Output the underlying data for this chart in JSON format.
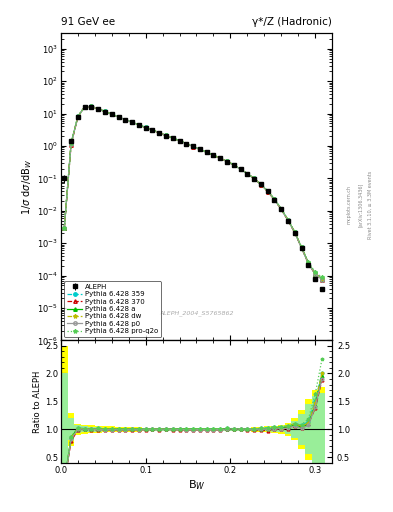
{
  "title_left": "91 GeV ee",
  "title_right": "γ*/Z (Hadronic)",
  "ylabel_main": "1/σ dσ/dB_W",
  "ylabel_ratio": "Ratio to ALEPH",
  "xlabel": "B_W",
  "watermark": "ALEPH_2004_S5765862",
  "rivet_label": "Rivet 3.1.10, ≥ 3.3M events",
  "arxiv_label": "[arXiv:1306.3436]",
  "mcplots_label": "mcplots.cern.ch",
  "bw_centers": [
    0.004,
    0.012,
    0.02,
    0.028,
    0.036,
    0.044,
    0.052,
    0.06,
    0.068,
    0.076,
    0.084,
    0.092,
    0.1,
    0.108,
    0.116,
    0.124,
    0.132,
    0.14,
    0.148,
    0.156,
    0.164,
    0.172,
    0.18,
    0.188,
    0.196,
    0.204,
    0.212,
    0.22,
    0.228,
    0.236,
    0.244,
    0.252,
    0.26,
    0.268,
    0.276,
    0.284,
    0.292,
    0.3,
    0.308
  ],
  "aleph_y": [
    0.1,
    1.4,
    8.0,
    16.0,
    16.5,
    14.0,
    11.5,
    9.5,
    7.8,
    6.5,
    5.4,
    4.5,
    3.7,
    3.1,
    2.55,
    2.1,
    1.75,
    1.45,
    1.18,
    0.97,
    0.79,
    0.64,
    0.52,
    0.42,
    0.33,
    0.26,
    0.19,
    0.14,
    0.099,
    0.065,
    0.04,
    0.022,
    0.011,
    0.005,
    0.002,
    0.0007,
    0.00022,
    8e-05,
    4e-05
  ],
  "aleph_yerr": [
    0.03,
    0.2,
    0.3,
    0.4,
    0.4,
    0.3,
    0.25,
    0.2,
    0.16,
    0.13,
    0.11,
    0.09,
    0.07,
    0.06,
    0.05,
    0.04,
    0.035,
    0.029,
    0.024,
    0.019,
    0.016,
    0.013,
    0.01,
    0.008,
    0.007,
    0.005,
    0.004,
    0.003,
    0.002,
    0.0015,
    0.001,
    0.0006,
    0.0003,
    0.00015,
    6e-05,
    2e-05,
    7e-06,
    3e-06,
    1.5e-06
  ],
  "py359_y": [
    0.003,
    1.2,
    8.2,
    16.2,
    16.6,
    14.2,
    11.6,
    9.6,
    7.85,
    6.55,
    5.45,
    4.52,
    3.72,
    3.12,
    2.57,
    2.12,
    1.76,
    1.46,
    1.19,
    0.975,
    0.793,
    0.643,
    0.522,
    0.421,
    0.335,
    0.263,
    0.192,
    0.141,
    0.1,
    0.066,
    0.041,
    0.023,
    0.0115,
    0.0053,
    0.0022,
    0.00075,
    0.00025,
    0.00012,
    8e-05
  ],
  "py370_y": [
    0.003,
    1.1,
    7.9,
    16.0,
    16.4,
    13.9,
    11.4,
    9.4,
    7.72,
    6.44,
    5.36,
    4.46,
    3.68,
    3.09,
    2.54,
    2.1,
    1.74,
    1.44,
    1.17,
    0.962,
    0.784,
    0.636,
    0.517,
    0.416,
    0.331,
    0.26,
    0.19,
    0.139,
    0.098,
    0.064,
    0.039,
    0.022,
    0.011,
    0.005,
    0.0021,
    0.00072,
    0.00024,
    0.00011,
    7.5e-05
  ],
  "pya_y": [
    0.003,
    1.2,
    8.1,
    16.1,
    16.5,
    14.1,
    11.55,
    9.55,
    7.83,
    6.53,
    5.43,
    4.5,
    3.7,
    3.1,
    2.56,
    2.11,
    1.755,
    1.455,
    1.185,
    0.972,
    0.791,
    0.641,
    0.521,
    0.42,
    0.334,
    0.262,
    0.191,
    0.14,
    0.099,
    0.065,
    0.04,
    0.0225,
    0.0112,
    0.0052,
    0.00215,
    0.00073,
    0.00024,
    0.000115,
    7.8e-05
  ],
  "pydw_y": [
    0.003,
    1.2,
    8.15,
    16.15,
    16.55,
    14.15,
    11.58,
    9.57,
    7.84,
    6.54,
    5.44,
    4.51,
    3.71,
    3.11,
    2.565,
    2.115,
    1.758,
    1.458,
    1.188,
    0.973,
    0.792,
    0.642,
    0.522,
    0.421,
    0.335,
    0.263,
    0.192,
    0.141,
    0.1,
    0.066,
    0.0405,
    0.0228,
    0.0113,
    0.0053,
    0.0022,
    0.00074,
    0.000245,
    0.000118,
    8e-05
  ],
  "pyp0_y": [
    0.003,
    1.15,
    8.0,
    16.05,
    16.45,
    13.95,
    11.45,
    9.45,
    7.75,
    6.47,
    5.38,
    4.47,
    3.69,
    3.095,
    2.545,
    2.105,
    1.745,
    1.445,
    1.175,
    0.965,
    0.785,
    0.637,
    0.518,
    0.417,
    0.332,
    0.261,
    0.191,
    0.14,
    0.099,
    0.065,
    0.04,
    0.0222,
    0.0111,
    0.0051,
    0.00212,
    0.00071,
    0.000235,
    0.000112,
    7.6e-05
  ],
  "pyproq2o_y": [
    0.003,
    1.2,
    8.2,
    16.2,
    16.6,
    14.2,
    11.6,
    9.6,
    7.85,
    6.55,
    5.45,
    4.52,
    3.72,
    3.12,
    2.57,
    2.12,
    1.76,
    1.46,
    1.19,
    0.975,
    0.793,
    0.643,
    0.522,
    0.421,
    0.335,
    0.263,
    0.192,
    0.141,
    0.1,
    0.066,
    0.041,
    0.023,
    0.0115,
    0.0053,
    0.0022,
    0.00076,
    0.00026,
    0.00013,
    9e-05
  ],
  "band_yellow_lo": [
    0.25,
    0.7,
    0.9,
    0.92,
    0.93,
    0.94,
    0.95,
    0.95,
    0.96,
    0.96,
    0.96,
    0.96,
    0.97,
    0.97,
    0.97,
    0.97,
    0.97,
    0.97,
    0.97,
    0.97,
    0.97,
    0.97,
    0.97,
    0.97,
    0.97,
    0.97,
    0.97,
    0.97,
    0.96,
    0.96,
    0.95,
    0.94,
    0.92,
    0.88,
    0.8,
    0.65,
    0.45,
    0.3,
    0.25
  ],
  "band_yellow_hi": [
    2.5,
    1.3,
    1.1,
    1.08,
    1.07,
    1.06,
    1.05,
    1.05,
    1.04,
    1.04,
    1.04,
    1.04,
    1.03,
    1.03,
    1.03,
    1.03,
    1.03,
    1.03,
    1.03,
    1.03,
    1.03,
    1.03,
    1.03,
    1.03,
    1.03,
    1.03,
    1.03,
    1.03,
    1.04,
    1.04,
    1.05,
    1.06,
    1.08,
    1.12,
    1.2,
    1.35,
    1.55,
    1.7,
    1.75
  ],
  "band_green_lo": [
    0.4,
    0.8,
    0.93,
    0.95,
    0.96,
    0.96,
    0.97,
    0.97,
    0.97,
    0.97,
    0.97,
    0.97,
    0.975,
    0.975,
    0.975,
    0.975,
    0.975,
    0.975,
    0.975,
    0.975,
    0.975,
    0.975,
    0.975,
    0.975,
    0.975,
    0.975,
    0.975,
    0.975,
    0.97,
    0.97,
    0.965,
    0.96,
    0.95,
    0.92,
    0.85,
    0.72,
    0.55,
    0.4,
    0.35
  ],
  "band_green_hi": [
    2.0,
    1.2,
    1.07,
    1.05,
    1.04,
    1.04,
    1.03,
    1.03,
    1.03,
    1.03,
    1.03,
    1.03,
    1.025,
    1.025,
    1.025,
    1.025,
    1.025,
    1.025,
    1.025,
    1.025,
    1.025,
    1.025,
    1.025,
    1.025,
    1.025,
    1.025,
    1.025,
    1.025,
    1.03,
    1.03,
    1.035,
    1.04,
    1.05,
    1.08,
    1.15,
    1.28,
    1.45,
    1.6,
    1.65
  ],
  "color_359": "#00CCCC",
  "color_370": "#CC0000",
  "color_a": "#00BB00",
  "color_dw": "#BBBB00",
  "color_p0": "#999999",
  "color_proq2o": "#55CC55",
  "color_aleph": "#000000",
  "color_band_yellow": "#FFFF00",
  "color_band_green": "#99EE99",
  "ylim_main": [
    1e-06,
    3000.0
  ],
  "ylim_ratio": [
    0.39,
    2.59
  ],
  "xlim": [
    0.0,
    0.32
  ]
}
